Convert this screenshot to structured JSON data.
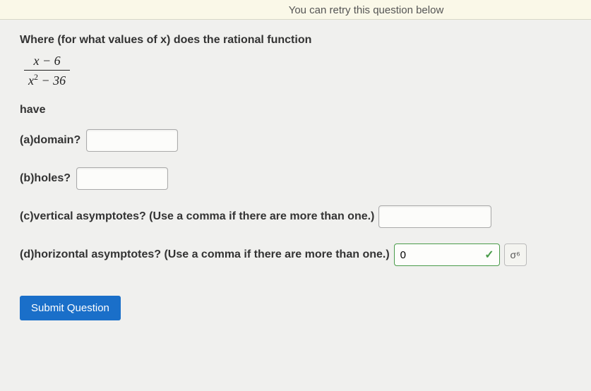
{
  "retry_bar": {
    "text": "You can retry this question below"
  },
  "question": {
    "intro": "Where (for what values of x) does the rational function",
    "numerator": "x − 6",
    "denominator_left": "x",
    "denominator_exp": "2",
    "denominator_right": " − 36",
    "have": "have"
  },
  "parts": {
    "a": {
      "label": "(a)domain?"
    },
    "b": {
      "label": "(b)holes?"
    },
    "c": {
      "label": "(c)vertical asymptotes? (Use a comma if there are more than one.)"
    },
    "d": {
      "label": "(d)horizontal asymptotes? (Use a comma if there are more than one.)",
      "value": "0"
    }
  },
  "buttons": {
    "submit": "Submit Question",
    "calculator_symbol": "σ⁶"
  },
  "colors": {
    "page_bg": "#f0f0ee",
    "retry_bg": "#faf8e8",
    "text": "#333333",
    "correct_border": "#4a9b4a",
    "submit_bg": "#1a6fc9",
    "submit_text": "#ffffff",
    "input_border": "#aaaaaa"
  }
}
